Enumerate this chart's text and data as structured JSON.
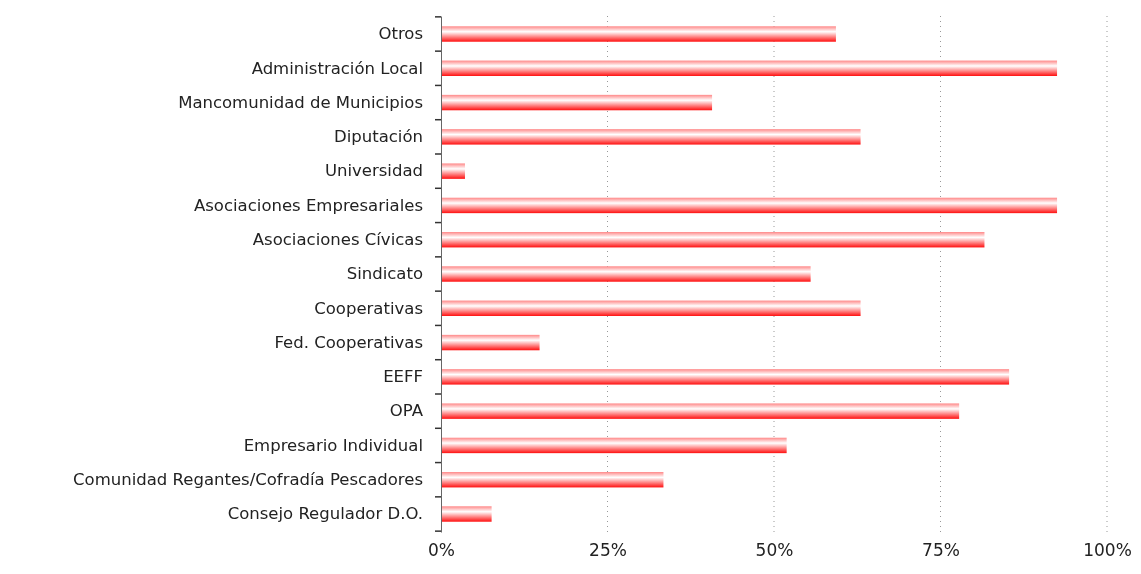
{
  "chart_data": {
    "type": "bar",
    "orientation": "horizontal",
    "categories": [
      "Otros",
      "Administración Local",
      "Mancomunidad de Municipios",
      "Diputación",
      "Universidad",
      "Asociaciones Empresariales",
      "Asociaciones Cívicas",
      "Sindicato",
      "Cooperativas",
      "Fed. Cooperativas",
      "EEFF",
      "OPA",
      "Empresario Individual",
      "Comunidad Regantes/Cofradía Pescadores",
      "Consejo Regulador D.O."
    ],
    "values": [
      59.3,
      92.5,
      40.7,
      63.0,
      3.6,
      92.5,
      81.6,
      55.5,
      63.0,
      14.8,
      85.3,
      77.8,
      51.9,
      33.4,
      7.6
    ],
    "color": "#ff1010",
    "xlim": [
      0,
      100
    ],
    "xticks": [
      {
        "value": 0,
        "label": "0%"
      },
      {
        "value": 25,
        "label": "25%"
      },
      {
        "value": 50,
        "label": "50%"
      },
      {
        "value": 75,
        "label": "75%"
      },
      {
        "value": 100,
        "label": "100%"
      }
    ],
    "grid": "x"
  }
}
